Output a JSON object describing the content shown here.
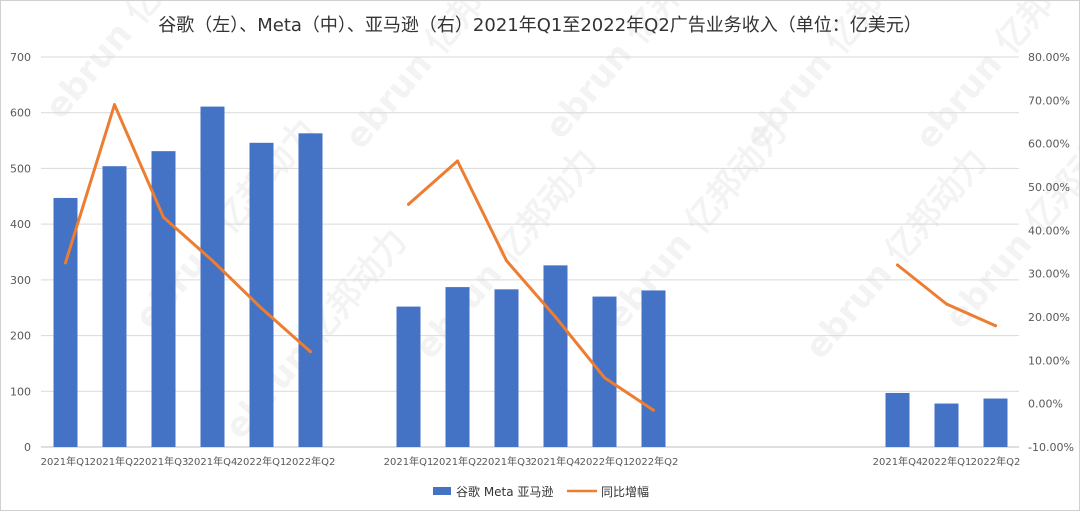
{
  "chart_data": {
    "type": "bar",
    "title": "谷歌（左）、Meta（中）、亚马逊（右）2021年Q1至2022年Q2广告业务收入（单位：亿美元）",
    "y_left": {
      "ylim": [
        0,
        700
      ],
      "ticks": [
        0,
        100,
        200,
        300,
        400,
        500,
        600,
        700
      ]
    },
    "y_right": {
      "ylim": [
        -10,
        80
      ],
      "ticks": [
        -10,
        0,
        10,
        20,
        30,
        40,
        50,
        60,
        70,
        80
      ],
      "tick_labels": [
        "-10.00%",
        "0.00%",
        "10.00%",
        "20.00%",
        "30.00%",
        "40.00%",
        "50.00%",
        "60.00%",
        "70.00%",
        "80.00%"
      ]
    },
    "groups": [
      {
        "company": "谷歌",
        "categories": [
          "2021年Q1",
          "2021年Q2",
          "2021年Q3",
          "2021年Q4",
          "2022年Q1",
          "2022年Q2"
        ],
        "revenue": [
          447,
          504,
          531,
          611,
          546,
          563
        ],
        "yoy_growth": [
          32.5,
          69.0,
          43.0,
          33.0,
          22.0,
          12.0
        ]
      },
      {
        "company": "Meta",
        "categories": [
          "2021年Q1",
          "2021年Q2",
          "2021年Q3",
          "2021年Q4",
          "2022年Q1",
          "2022年Q2"
        ],
        "revenue": [
          252,
          287,
          283,
          326,
          270,
          281
        ],
        "yoy_growth": [
          46.0,
          56.0,
          33.0,
          20.0,
          6.0,
          -1.5
        ]
      },
      {
        "company": "亚马逊",
        "categories": [
          "2021年Q4",
          "2022年Q1",
          "2022年Q2"
        ],
        "revenue": [
          97,
          78,
          87
        ],
        "yoy_growth": [
          32.0,
          23.0,
          18.0
        ]
      }
    ],
    "series": [
      {
        "name": "谷歌 Meta 亚马逊",
        "kind": "bar",
        "color": "#4472C4"
      },
      {
        "name": "同比增幅",
        "kind": "line",
        "color": "#ED7D31"
      }
    ],
    "grid": true,
    "legend_position": "bottom"
  },
  "watermark": "ebrun 亿邦动力"
}
